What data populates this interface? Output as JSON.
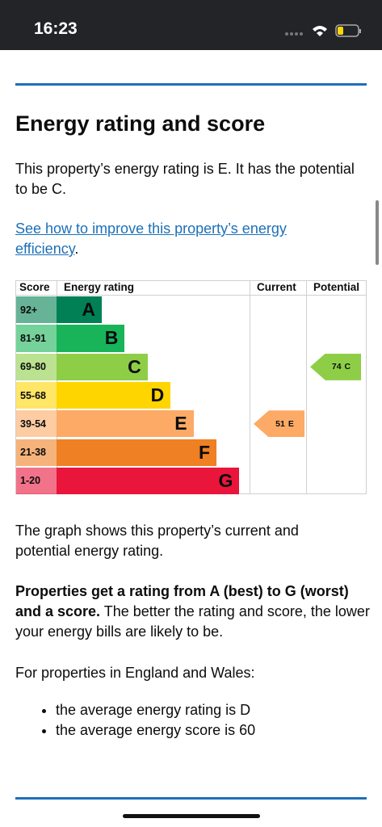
{
  "status_bar": {
    "time": "16:23"
  },
  "section": {
    "title": "Energy rating and score",
    "intro": "This property’s energy rating is E. It has the potential to be C.",
    "link": "See how to improve this property’s energy efficiency",
    "link_end": "."
  },
  "rating_table": {
    "headers": [
      "Score",
      "Energy rating",
      "Current",
      "Potential"
    ],
    "bands": [
      {
        "score": "92+",
        "rating": "A",
        "color": "#008054"
      },
      {
        "score": "81-91",
        "rating": "B",
        "color": "#19b459"
      },
      {
        "score": "69-80",
        "rating": "C",
        "color": "#8dce46"
      },
      {
        "score": "55-68",
        "rating": "D",
        "color": "#ffd500"
      },
      {
        "score": "39-54",
        "rating": "E",
        "color": "#fcaa65"
      },
      {
        "score": "21-38",
        "rating": "F",
        "color": "#ef8023"
      },
      {
        "score": "1-20",
        "rating": "G",
        "color": "#e9153b"
      }
    ],
    "current": {
      "score": 51,
      "rating": "E"
    },
    "potential": {
      "score": 74,
      "rating": "C"
    }
  },
  "explanation": "The graph shows this property’s current and potential energy rating.",
  "emphasis": "Properties get a rating from A (best) to G (worst) and a score.",
  "emphasis_rest": " The better the rating and score, the lower your energy bills are likely to be.",
  "average_intro": "For properties in England and Wales:",
  "averages": [
    "the average energy rating is D",
    "the average energy score is 60"
  ]
}
